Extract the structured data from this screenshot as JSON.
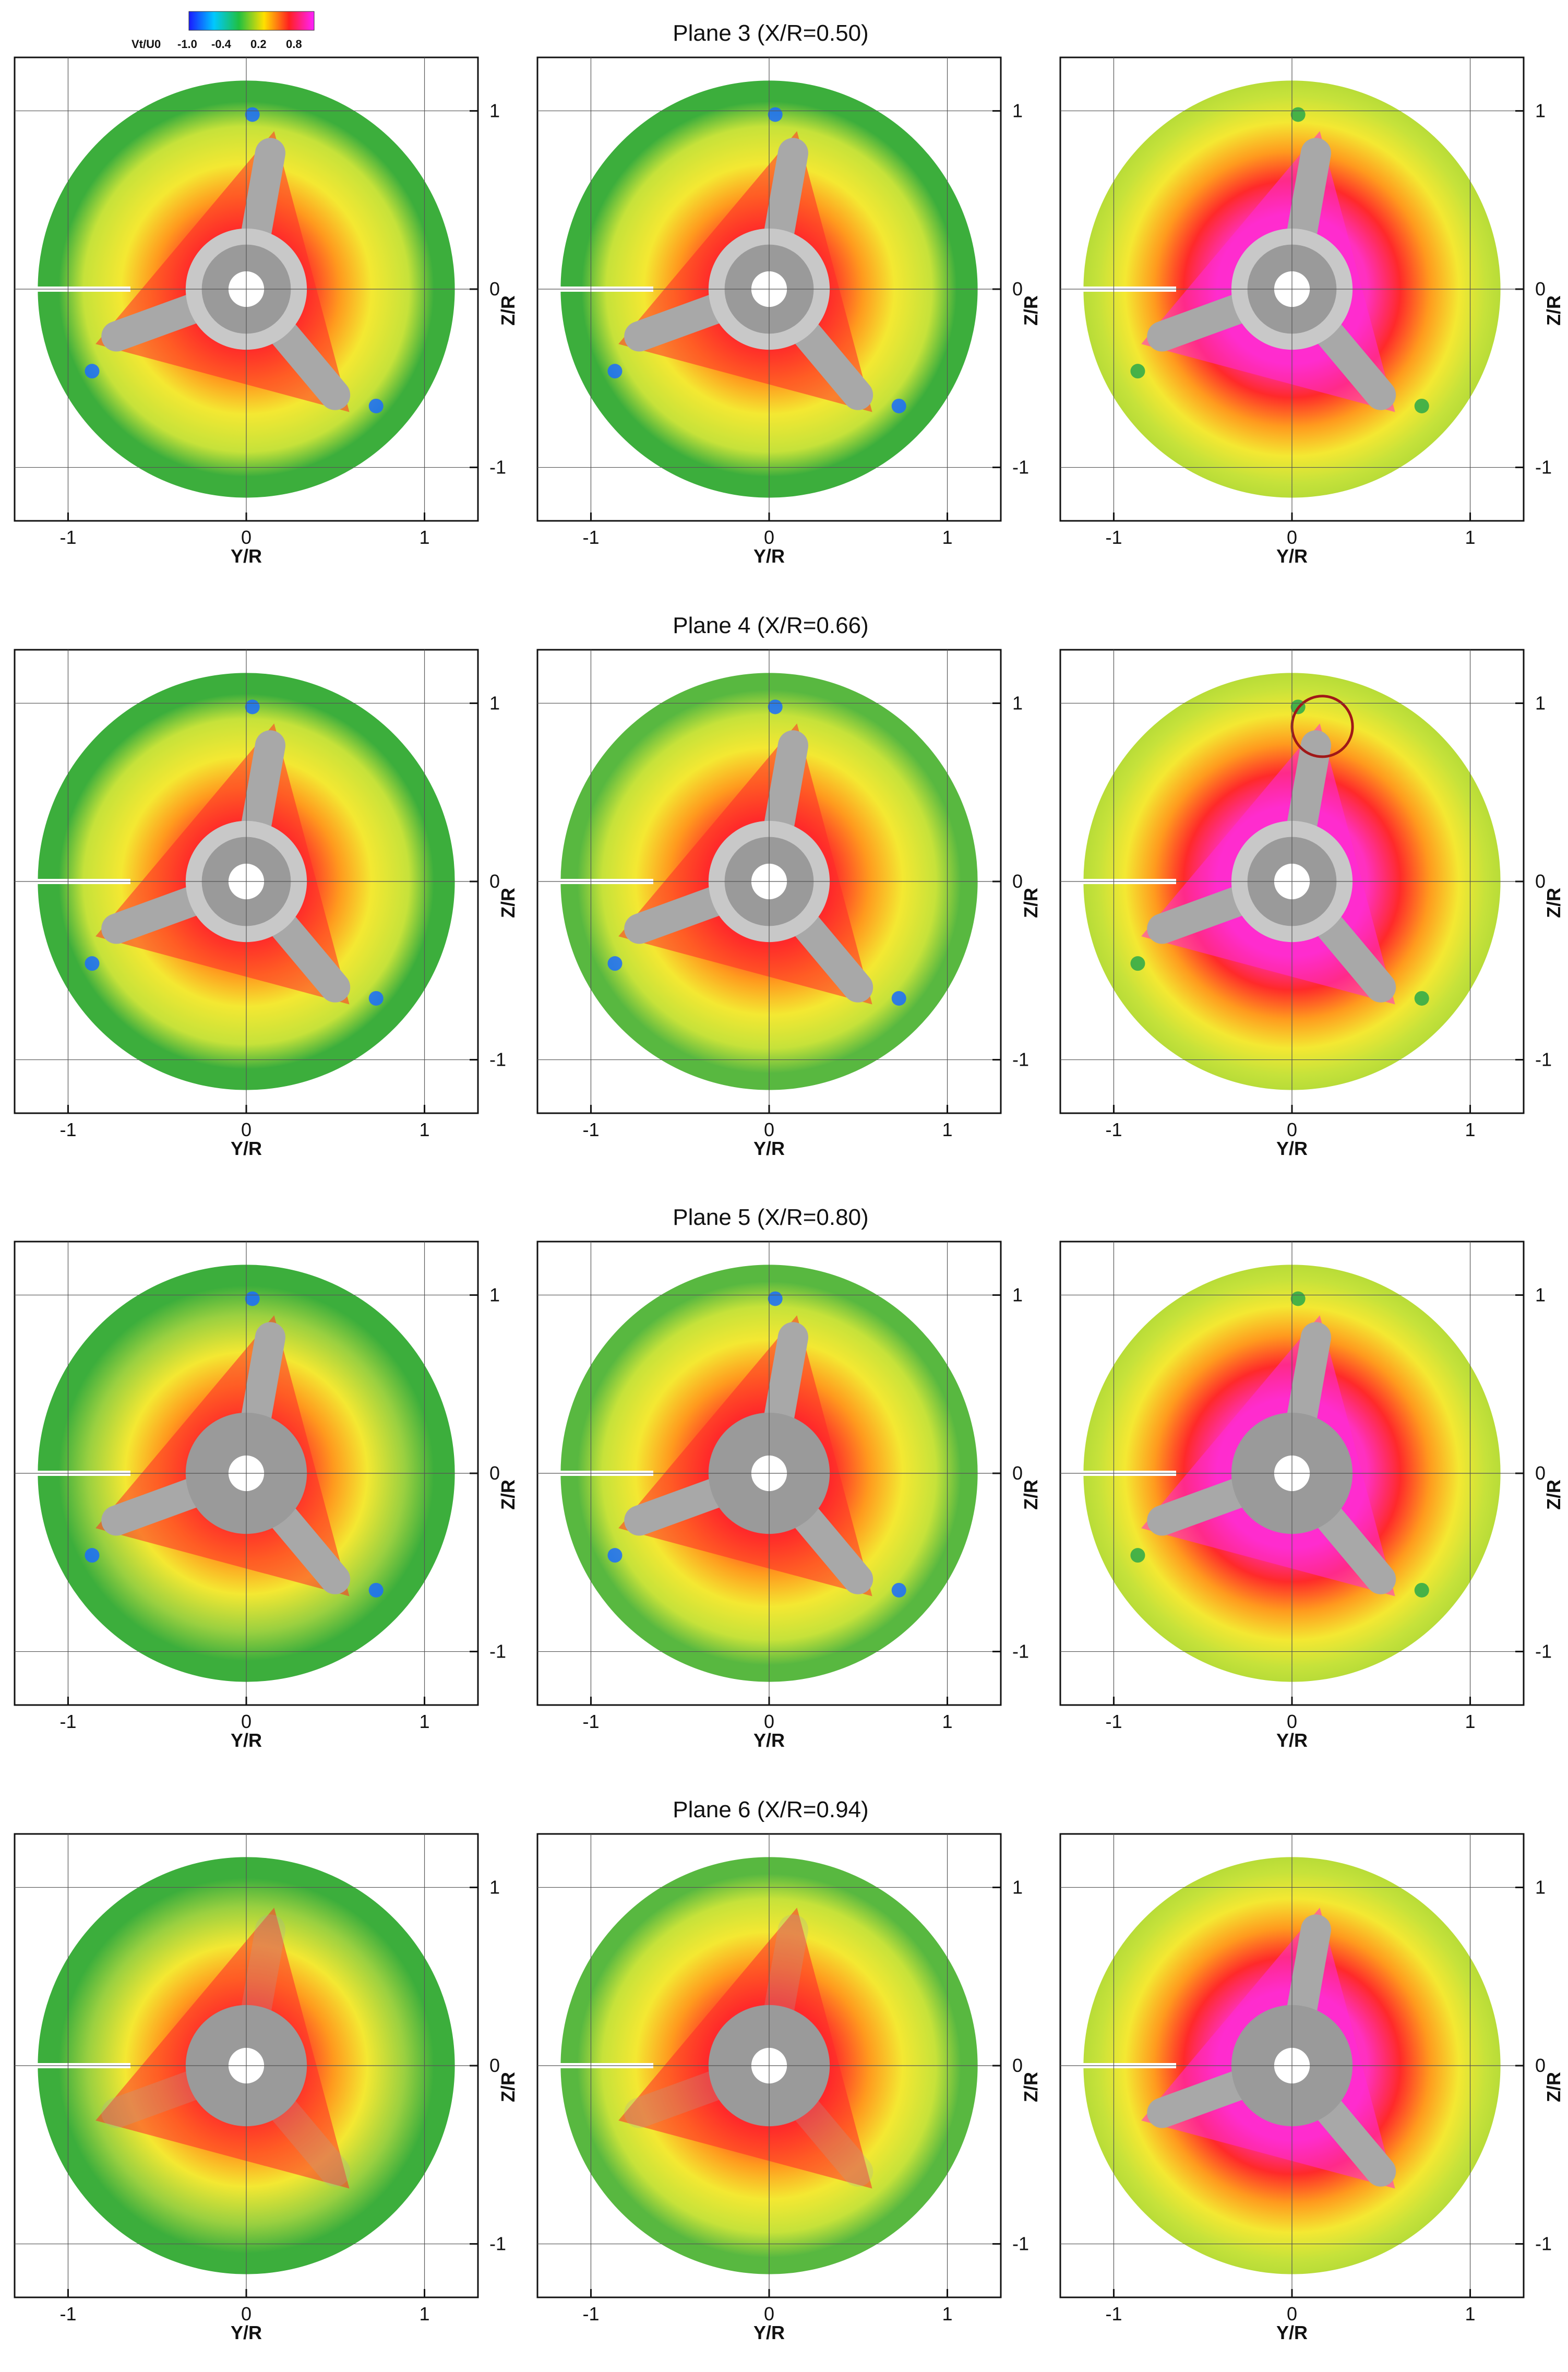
{
  "colorbar": {
    "label": "Vt/U0",
    "ticks": [
      "-1.0",
      "-0.4",
      "0.2",
      "0.8"
    ],
    "colors": [
      "#1a1aff",
      "#00c8ff",
      "#20c040",
      "#ffe000",
      "#ff2020",
      "#ff20ff"
    ]
  },
  "colors": {
    "outer_green": "#3cae3c",
    "outer_yellowgreen": "#c6e23a",
    "mid_yellow": "#f4e832",
    "mid_orange": "#ff9a1e",
    "inner_red": "#ff2a2a",
    "inner_magenta": "#ff2ad8",
    "blade_gray": "#a8a8a8",
    "hub_light": "#c8c8c8",
    "hub_dark": "#9a9a9a",
    "vortex_blue": "#1a6cff"
  },
  "chart_data": {
    "type": "contour-grid",
    "variable": "Vt/U0",
    "xlabel": "Y/R",
    "ylabel": "Z/R",
    "xlim": [
      -1.3,
      1.3
    ],
    "ylim": [
      -1.3,
      1.3
    ],
    "xticks": [
      "-1",
      "0",
      "1"
    ],
    "yticks": [
      "1",
      "0",
      "-1"
    ],
    "grid": true,
    "rows": [
      {
        "title": "Plane 3 (X/R=0.50)",
        "x_over_r": 0.5
      },
      {
        "title": "Plane 4 (X/R=0.66)",
        "x_over_r": 0.66
      },
      {
        "title": "Plane 5 (X/R=0.80)",
        "x_over_r": 0.8
      },
      {
        "title": "Plane 6 (X/R=0.94)",
        "x_over_r": 0.94
      }
    ],
    "columns": 3,
    "blade_angles_deg": [
      80,
      -50,
      -160
    ]
  }
}
